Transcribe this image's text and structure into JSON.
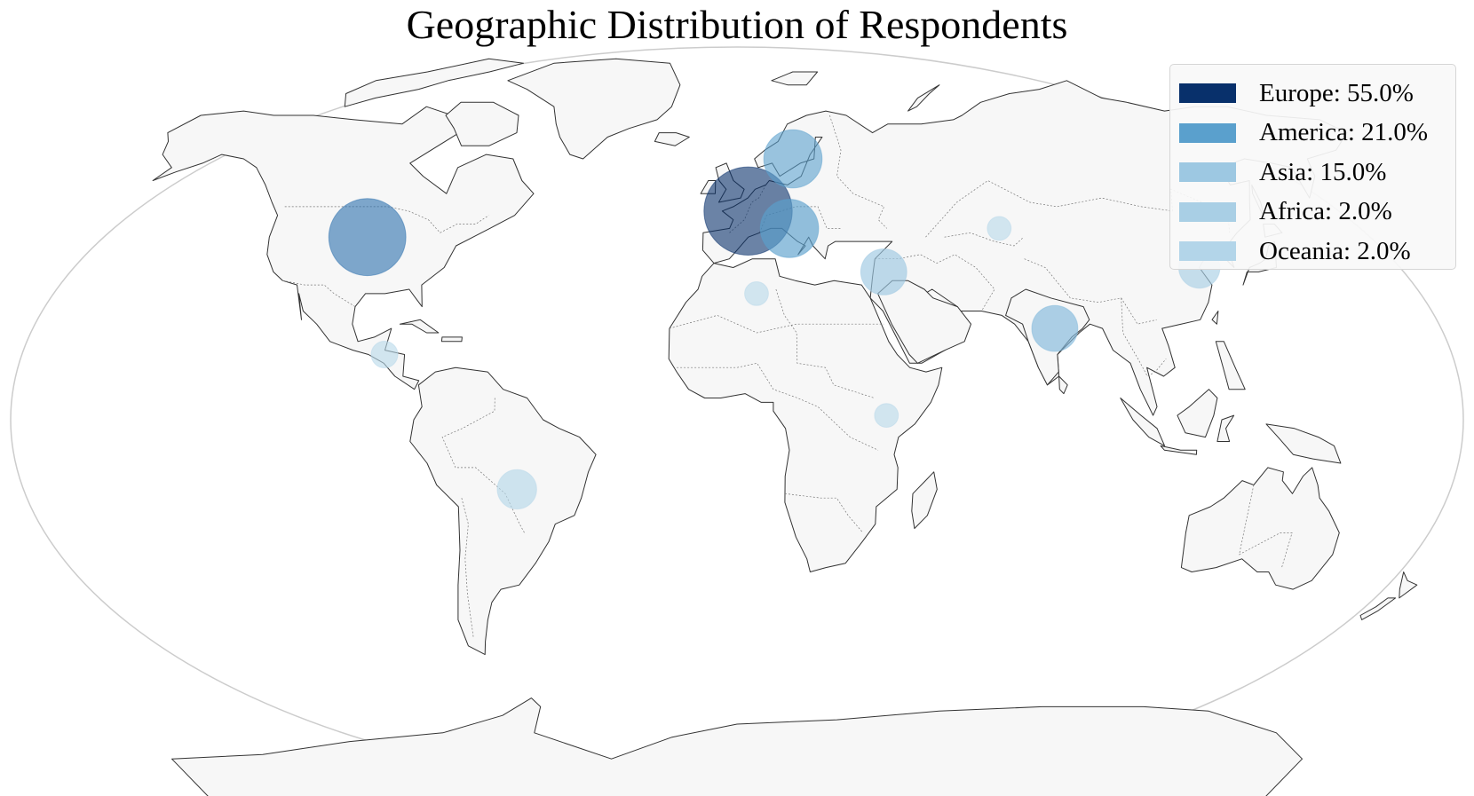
{
  "title": "Geographic Distribution of Respondents",
  "colors": {
    "ocean": "#ffffff",
    "land": "#f7f7f7",
    "coast": "#333333",
    "border": "#777777",
    "frame": "#cccccc"
  },
  "legend": {
    "placement": "top-right",
    "items": [
      {
        "label": "Europe: 55.0%",
        "color": "#08306b"
      },
      {
        "label": "America: 21.0%",
        "color": "#5aa0cd"
      },
      {
        "label": "Asia: 15.0%",
        "color": "#9dc8e2"
      },
      {
        "label": "Africa: 2.0%",
        "color": "#a9cfe5"
      },
      {
        "label": "Oceania: 2.0%",
        "color": "#b3d5e9"
      }
    ]
  },
  "bubbles": [
    {
      "region": "Western Europe",
      "lon": 3,
      "lat": 48,
      "weight": 55,
      "color": "#08306b",
      "opacity": 0.6
    },
    {
      "region": "Scandinavia",
      "lon": 16,
      "lat": 60,
      "weight": 24,
      "color": "#5aa0cd",
      "opacity": 0.6
    },
    {
      "region": "Central Europe",
      "lon": 14,
      "lat": 44,
      "weight": 24,
      "color": "#5aa0cd",
      "opacity": 0.65
    },
    {
      "region": "North America",
      "lon": -98,
      "lat": 42,
      "weight": 42,
      "color": "#2c6fae",
      "opacity": 0.6
    },
    {
      "region": "Middle East",
      "lon": 38,
      "lat": 34,
      "weight": 15,
      "color": "#9dc8e2",
      "opacity": 0.65
    },
    {
      "region": "India",
      "lon": 80,
      "lat": 21,
      "weight": 15,
      "color": "#82b9dc",
      "opacity": 0.65
    },
    {
      "region": "East Asia",
      "lon": 120,
      "lat": 35,
      "weight": 12,
      "color": "#a9cfe5",
      "opacity": 0.65
    },
    {
      "region": "Central Asia",
      "lon": 70,
      "lat": 44,
      "weight": 4,
      "color": "#b7d8ea",
      "opacity": 0.6
    },
    {
      "region": "North Africa",
      "lon": 5,
      "lat": 29,
      "weight": 4,
      "color": "#b7d8ea",
      "opacity": 0.6
    },
    {
      "region": "Central America",
      "lon": -88,
      "lat": 15,
      "weight": 5,
      "color": "#b7d8ea",
      "opacity": 0.6
    },
    {
      "region": "South America",
      "lon": -55,
      "lat": -16,
      "weight": 11,
      "color": "#b7d8ea",
      "opacity": 0.65
    },
    {
      "region": "East Africa",
      "lon": 37,
      "lat": 1,
      "weight": 4,
      "color": "#b7d8ea",
      "opacity": 0.6
    }
  ]
}
